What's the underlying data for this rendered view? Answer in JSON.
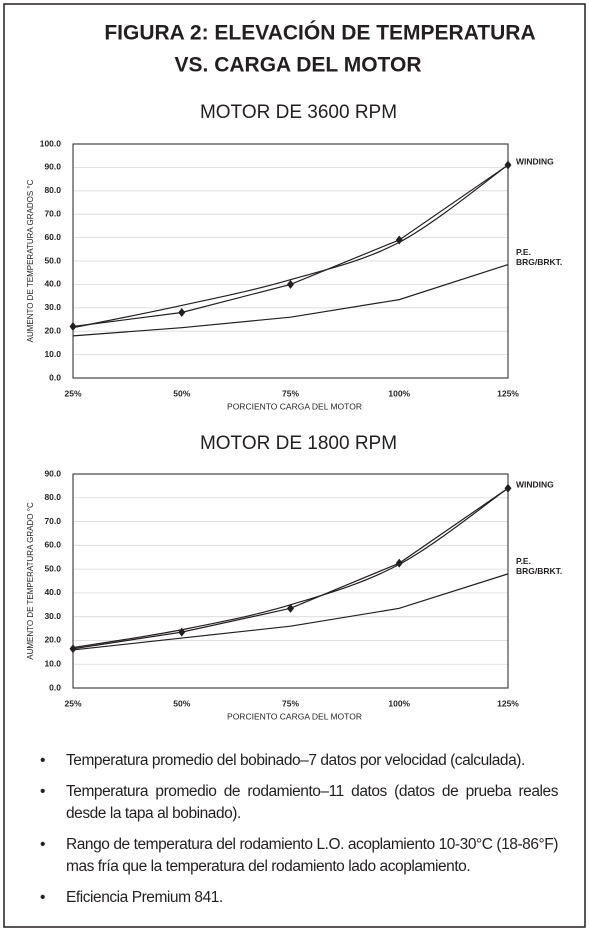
{
  "header": {
    "title_lines": [
      "FIGURA 2: ELEVACIÓN DE TEMPERATURA",
      "VS. CARGA DEL MOTOR"
    ]
  },
  "chart_data": [
    {
      "type": "line",
      "title": "MOTOR DE 3600 RPM",
      "ylabel": "AUMENTO DE TEMPERATURA GRADOS °C",
      "xlabel": "PORCIENTO CARGA DEL MOTOR",
      "categories": [
        "25%",
        "50%",
        "75%",
        "100%",
        "125%"
      ],
      "ylim": [
        0,
        100
      ],
      "yticks": [
        {
          "value": 0,
          "label": "0.0"
        },
        {
          "value": 10,
          "label": "10.0"
        },
        {
          "value": 20,
          "label": "20.0"
        },
        {
          "value": 30,
          "label": "30.0"
        },
        {
          "value": 40,
          "label": "40.0"
        },
        {
          "value": 50,
          "label": "50.0"
        },
        {
          "value": 60,
          "label": "60.0"
        },
        {
          "value": 70,
          "label": "70.0"
        },
        {
          "value": 80,
          "label": "80.0"
        },
        {
          "value": 90,
          "label": "90.0"
        },
        {
          "value": 100,
          "label": "100.0"
        }
      ],
      "grid": true,
      "series": [
        {
          "color": "#231f20",
          "smooth": true,
          "markers": false,
          "values": [
            21.5,
            31,
            42,
            58,
            91
          ]
        },
        {
          "color": "#231f20",
          "smooth": false,
          "markers": true,
          "values": [
            22,
            28,
            40,
            59,
            91
          ]
        },
        {
          "color": "#231f20",
          "smooth": false,
          "markers": false,
          "values": [
            18,
            21.5,
            26,
            33.5,
            48.5
          ]
        }
      ],
      "annotations": [
        {
          "series": 1,
          "lines": [
            "WINDING"
          ]
        },
        {
          "series": 2,
          "lines": [
            "P.E.",
            "BRG/BRKT."
          ]
        }
      ]
    },
    {
      "type": "line",
      "title": "MOTOR DE 1800 RPM",
      "ylabel": "AUMENTO DE TEMPERATURA GRADO °C",
      "xlabel": "PORCIENTO CARGA DEL MOTOR",
      "categories": [
        "25%",
        "50%",
        "75%",
        "100%",
        "125%"
      ],
      "ylim": [
        0,
        90
      ],
      "yticks": [
        {
          "value": 0,
          "label": "0.0"
        },
        {
          "value": 10,
          "label": "10.0"
        },
        {
          "value": 20,
          "label": "20.0"
        },
        {
          "value": 30,
          "label": "30.0"
        },
        {
          "value": 40,
          "label": "40.0"
        },
        {
          "value": 50,
          "label": "50.0"
        },
        {
          "value": 60,
          "label": "60.0"
        },
        {
          "value": 70,
          "label": "70.0"
        },
        {
          "value": 80,
          "label": "80.0"
        },
        {
          "value": 90,
          "label": "90.0"
        }
      ],
      "grid": true,
      "series": [
        {
          "color": "#231f20",
          "smooth": true,
          "markers": false,
          "values": [
            17,
            24.5,
            35,
            52,
            84
          ]
        },
        {
          "color": "#231f20",
          "smooth": false,
          "markers": true,
          "values": [
            16.5,
            23.5,
            33.5,
            52.5,
            84
          ]
        },
        {
          "color": "#231f20",
          "smooth": false,
          "markers": false,
          "values": [
            16,
            21,
            26,
            33.5,
            48
          ]
        }
      ],
      "annotations": [
        {
          "series": 1,
          "lines": [
            "WINDING"
          ]
        },
        {
          "series": 2,
          "lines": [
            "P.E.",
            "BRG/BRKT."
          ]
        }
      ]
    }
  ],
  "notes": [
    "Temperatura promedio del bobinado–7 datos por velocidad (calculada).",
    "Temperatura promedio de rodamiento–11 datos (datos de prueba reales desde la tapa al bobinado).",
    "Rango de temperatura del rodamiento L.O. acoplamiento 10-30°C (18-86°F) mas fría que la temperatura del rodamiento lado acoplamiento.",
    "Eficiencia Premium 841."
  ]
}
